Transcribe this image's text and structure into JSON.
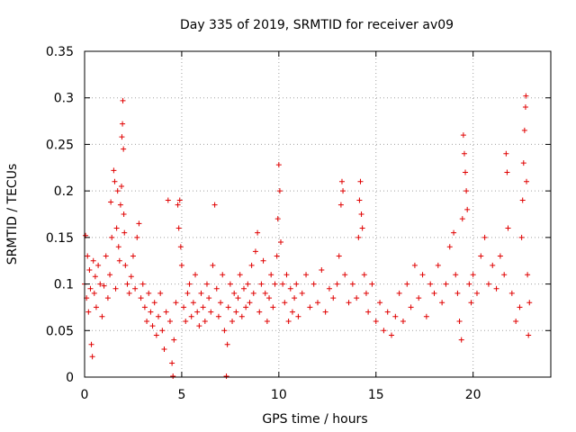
{
  "chart_data": {
    "type": "scatter",
    "title": "Day 335 of 2019, SRMTID for receiver av09",
    "xlabel": "GPS time / hours",
    "ylabel": "SRMTID / TECUs",
    "xlim": [
      0,
      24
    ],
    "ylim": [
      0,
      0.35
    ],
    "x_ticks": [
      0,
      5,
      10,
      15,
      20
    ],
    "x_tick_labels": [
      "0",
      "5",
      "10",
      "15",
      "20"
    ],
    "y_ticks": [
      0,
      0.05,
      0.1,
      0.15,
      0.2,
      0.25,
      0.3,
      0.35
    ],
    "y_tick_labels": [
      "0",
      "0.05",
      "0.1",
      "0.15",
      "0.2",
      "0.25",
      "0.3",
      "0.35"
    ],
    "grid": true,
    "marker": "plus",
    "color": "#e00000",
    "series": [
      {
        "name": "SRMTID",
        "points": [
          [
            0.0,
            0.1
          ],
          [
            0.05,
            0.152
          ],
          [
            0.1,
            0.085
          ],
          [
            0.15,
            0.13
          ],
          [
            0.2,
            0.07
          ],
          [
            0.25,
            0.115
          ],
          [
            0.3,
            0.095
          ],
          [
            0.35,
            0.035
          ],
          [
            0.4,
            0.022
          ],
          [
            0.45,
            0.125
          ],
          [
            0.5,
            0.09
          ],
          [
            0.55,
            0.108
          ],
          [
            0.6,
            0.075
          ],
          [
            0.7,
            0.12
          ],
          [
            0.8,
            0.1
          ],
          [
            0.9,
            0.065
          ],
          [
            1.0,
            0.098
          ],
          [
            1.1,
            0.13
          ],
          [
            1.2,
            0.085
          ],
          [
            1.3,
            0.11
          ],
          [
            1.35,
            0.188
          ],
          [
            1.4,
            0.15
          ],
          [
            1.5,
            0.222
          ],
          [
            1.55,
            0.21
          ],
          [
            1.6,
            0.095
          ],
          [
            1.65,
            0.16
          ],
          [
            1.7,
            0.2
          ],
          [
            1.75,
            0.14
          ],
          [
            1.8,
            0.125
          ],
          [
            1.85,
            0.185
          ],
          [
            1.9,
            0.205
          ],
          [
            1.92,
            0.258
          ],
          [
            1.95,
            0.272
          ],
          [
            1.97,
            0.297
          ],
          [
            2.0,
            0.245
          ],
          [
            2.02,
            0.175
          ],
          [
            2.05,
            0.155
          ],
          [
            2.1,
            0.12
          ],
          [
            2.2,
            0.1
          ],
          [
            2.3,
            0.09
          ],
          [
            2.4,
            0.108
          ],
          [
            2.5,
            0.13
          ],
          [
            2.6,
            0.095
          ],
          [
            2.7,
            0.15
          ],
          [
            2.8,
            0.165
          ],
          [
            2.9,
            0.085
          ],
          [
            3.0,
            0.1
          ],
          [
            3.1,
            0.075
          ],
          [
            3.2,
            0.06
          ],
          [
            3.3,
            0.09
          ],
          [
            3.4,
            0.07
          ],
          [
            3.5,
            0.055
          ],
          [
            3.6,
            0.08
          ],
          [
            3.7,
            0.045
          ],
          [
            3.8,
            0.065
          ],
          [
            3.9,
            0.09
          ],
          [
            4.0,
            0.05
          ],
          [
            4.1,
            0.03
          ],
          [
            4.2,
            0.07
          ],
          [
            4.3,
            0.19
          ],
          [
            4.4,
            0.06
          ],
          [
            4.5,
            0.015
          ],
          [
            4.55,
            0.0
          ],
          [
            4.6,
            0.04
          ],
          [
            4.7,
            0.08
          ],
          [
            4.8,
            0.185
          ],
          [
            4.85,
            0.16
          ],
          [
            4.9,
            0.19
          ],
          [
            4.95,
            0.14
          ],
          [
            5.0,
            0.12
          ],
          [
            5.1,
            0.075
          ],
          [
            5.2,
            0.06
          ],
          [
            5.3,
            0.09
          ],
          [
            5.4,
            0.1
          ],
          [
            5.5,
            0.065
          ],
          [
            5.6,
            0.08
          ],
          [
            5.7,
            0.11
          ],
          [
            5.8,
            0.07
          ],
          [
            5.9,
            0.055
          ],
          [
            6.0,
            0.09
          ],
          [
            6.1,
            0.075
          ],
          [
            6.2,
            0.06
          ],
          [
            6.3,
            0.1
          ],
          [
            6.4,
            0.085
          ],
          [
            6.5,
            0.07
          ],
          [
            6.6,
            0.12
          ],
          [
            6.7,
            0.185
          ],
          [
            6.8,
            0.095
          ],
          [
            6.9,
            0.065
          ],
          [
            7.0,
            0.08
          ],
          [
            7.1,
            0.11
          ],
          [
            7.2,
            0.05
          ],
          [
            7.3,
            0.0
          ],
          [
            7.35,
            0.035
          ],
          [
            7.4,
            0.075
          ],
          [
            7.5,
            0.1
          ],
          [
            7.6,
            0.06
          ],
          [
            7.7,
            0.09
          ],
          [
            7.8,
            0.07
          ],
          [
            7.9,
            0.085
          ],
          [
            8.0,
            0.11
          ],
          [
            8.1,
            0.065
          ],
          [
            8.2,
            0.095
          ],
          [
            8.3,
            0.075
          ],
          [
            8.4,
            0.1
          ],
          [
            8.5,
            0.08
          ],
          [
            8.6,
            0.12
          ],
          [
            8.7,
            0.09
          ],
          [
            8.8,
            0.135
          ],
          [
            8.9,
            0.155
          ],
          [
            9.0,
            0.07
          ],
          [
            9.1,
            0.1
          ],
          [
            9.2,
            0.125
          ],
          [
            9.3,
            0.09
          ],
          [
            9.4,
            0.06
          ],
          [
            9.5,
            0.085
          ],
          [
            9.6,
            0.11
          ],
          [
            9.7,
            0.075
          ],
          [
            9.8,
            0.1
          ],
          [
            9.9,
            0.13
          ],
          [
            9.95,
            0.17
          ],
          [
            10.0,
            0.228
          ],
          [
            10.05,
            0.2
          ],
          [
            10.1,
            0.145
          ],
          [
            10.2,
            0.1
          ],
          [
            10.3,
            0.08
          ],
          [
            10.4,
            0.11
          ],
          [
            10.5,
            0.06
          ],
          [
            10.6,
            0.095
          ],
          [
            10.7,
            0.07
          ],
          [
            10.8,
            0.085
          ],
          [
            10.9,
            0.1
          ],
          [
            11.0,
            0.065
          ],
          [
            11.2,
            0.09
          ],
          [
            11.4,
            0.11
          ],
          [
            11.6,
            0.075
          ],
          [
            11.8,
            0.1
          ],
          [
            12.0,
            0.08
          ],
          [
            12.2,
            0.115
          ],
          [
            12.4,
            0.07
          ],
          [
            12.6,
            0.095
          ],
          [
            12.8,
            0.085
          ],
          [
            13.0,
            0.1
          ],
          [
            13.1,
            0.13
          ],
          [
            13.2,
            0.185
          ],
          [
            13.25,
            0.21
          ],
          [
            13.3,
            0.2
          ],
          [
            13.4,
            0.11
          ],
          [
            13.6,
            0.08
          ],
          [
            13.8,
            0.1
          ],
          [
            14.0,
            0.085
          ],
          [
            14.1,
            0.15
          ],
          [
            14.15,
            0.19
          ],
          [
            14.2,
            0.21
          ],
          [
            14.25,
            0.175
          ],
          [
            14.3,
            0.16
          ],
          [
            14.4,
            0.11
          ],
          [
            14.5,
            0.09
          ],
          [
            14.6,
            0.07
          ],
          [
            14.8,
            0.1
          ],
          [
            15.0,
            0.06
          ],
          [
            15.2,
            0.08
          ],
          [
            15.4,
            0.05
          ],
          [
            15.6,
            0.07
          ],
          [
            15.8,
            0.045
          ],
          [
            16.0,
            0.065
          ],
          [
            16.2,
            0.09
          ],
          [
            16.4,
            0.06
          ],
          [
            16.6,
            0.1
          ],
          [
            16.8,
            0.075
          ],
          [
            17.0,
            0.12
          ],
          [
            17.2,
            0.085
          ],
          [
            17.4,
            0.11
          ],
          [
            17.6,
            0.065
          ],
          [
            17.8,
            0.1
          ],
          [
            18.0,
            0.09
          ],
          [
            18.2,
            0.12
          ],
          [
            18.4,
            0.08
          ],
          [
            18.6,
            0.1
          ],
          [
            18.8,
            0.14
          ],
          [
            19.0,
            0.155
          ],
          [
            19.1,
            0.11
          ],
          [
            19.2,
            0.09
          ],
          [
            19.3,
            0.06
          ],
          [
            19.4,
            0.04
          ],
          [
            19.45,
            0.17
          ],
          [
            19.5,
            0.26
          ],
          [
            19.55,
            0.24
          ],
          [
            19.6,
            0.22
          ],
          [
            19.65,
            0.2
          ],
          [
            19.7,
            0.18
          ],
          [
            19.8,
            0.1
          ],
          [
            19.9,
            0.08
          ],
          [
            20.0,
            0.11
          ],
          [
            20.2,
            0.09
          ],
          [
            20.4,
            0.13
          ],
          [
            20.6,
            0.15
          ],
          [
            20.8,
            0.1
          ],
          [
            21.0,
            0.12
          ],
          [
            21.2,
            0.095
          ],
          [
            21.4,
            0.13
          ],
          [
            21.6,
            0.11
          ],
          [
            21.7,
            0.24
          ],
          [
            21.75,
            0.22
          ],
          [
            21.8,
            0.16
          ],
          [
            22.0,
            0.09
          ],
          [
            22.2,
            0.06
          ],
          [
            22.4,
            0.075
          ],
          [
            22.5,
            0.15
          ],
          [
            22.55,
            0.19
          ],
          [
            22.6,
            0.23
          ],
          [
            22.65,
            0.265
          ],
          [
            22.7,
            0.29
          ],
          [
            22.72,
            0.302
          ],
          [
            22.75,
            0.21
          ],
          [
            22.8,
            0.11
          ],
          [
            22.85,
            0.045
          ],
          [
            22.9,
            0.08
          ]
        ]
      }
    ]
  }
}
